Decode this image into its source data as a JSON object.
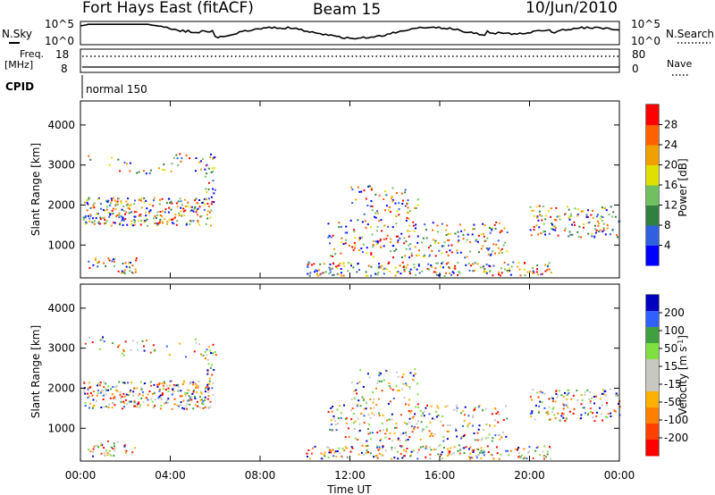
{
  "header": {
    "station": "Fort Hays East (fitACF)",
    "beam": "Beam 15",
    "date": "10/Jun/2010"
  },
  "panels": {
    "noise": {
      "left_label": "N.Sky",
      "right_label": "N.Search",
      "left_ticks": [
        "10^5",
        "10^0"
      ],
      "right_ticks": [
        "10^5",
        "10^0"
      ]
    },
    "freq": {
      "left_label_top": "Freq.",
      "left_label_bottom": "[MHz]",
      "right_label": "Nave",
      "left_ticks": [
        "18",
        "8"
      ],
      "right_ticks": [
        "80",
        "0"
      ]
    },
    "cpid": {
      "label": "CPID",
      "value": "normal 150"
    }
  },
  "colors": {
    "power_scale": [
      "#0000ff",
      "#3060e0",
      "#308040",
      "#70c060",
      "#e0e000",
      "#f0a000",
      "#ff6000",
      "#ff0000"
    ],
    "velocity_scale": [
      "#0000c0",
      "#3060ff",
      "#40a040",
      "#80e040",
      "#c8c8c0",
      "#c8c8c0",
      "#ffb000",
      "#ff8000",
      "#ff4000",
      "#ff0000"
    ]
  },
  "chart_data": [
    {
      "type": "heatmap",
      "panel": "power",
      "ylabel": "Slant Range [km]",
      "yticks": [
        "1000",
        "2000",
        "3000",
        "4000"
      ],
      "ylim": [
        180,
        4600
      ],
      "colorbar_label": "Power [dB]",
      "colorbar_ticks": [
        "4",
        "8",
        "12",
        "16",
        "20",
        "24",
        "28"
      ],
      "colorbar_range": [
        0,
        30
      ]
    },
    {
      "type": "heatmap",
      "panel": "velocity",
      "ylabel": "Slant Range [km]",
      "yticks": [
        "1000",
        "2000",
        "3000",
        "4000"
      ],
      "ylim": [
        180,
        4600
      ],
      "colorbar_label": "Velocity [m s",
      "colorbar_label_sup": "-1",
      "colorbar_label_end": "]",
      "colorbar_ticks": [
        "200",
        "100",
        "50",
        "15",
        "-15",
        "-50",
        "-100",
        "-200"
      ]
    }
  ],
  "xaxis": {
    "label": "Time UT",
    "ticks": [
      "00:00",
      "04:00",
      "08:00",
      "12:00",
      "16:00",
      "20:00",
      "00:00"
    ]
  }
}
